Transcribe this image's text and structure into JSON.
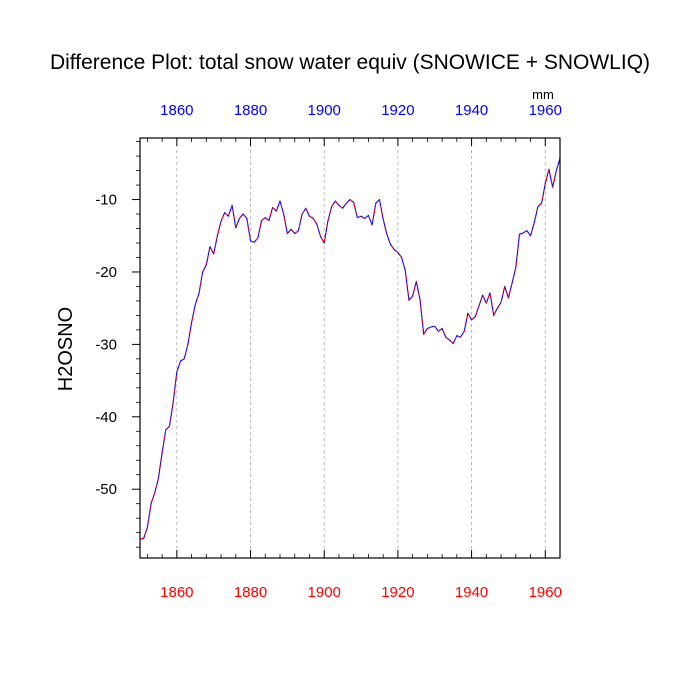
{
  "chart_data": {
    "type": "line",
    "title": "Difference Plot: total snow water equiv (SNOWICE + SNOWLIQ)",
    "ylabel": "H2OSNO",
    "units": "mm",
    "xlim": [
      1850,
      1964
    ],
    "ylim": [
      -59.5,
      -1.5
    ],
    "x_ticks": [
      1860,
      1880,
      1900,
      1920,
      1940,
      1960
    ],
    "y_ticks": [
      -10,
      -20,
      -30,
      -40,
      -50
    ],
    "x_tick_labels": [
      "1860",
      "1880",
      "1900",
      "1920",
      "1940",
      "1960"
    ],
    "y_tick_labels": [
      "-10",
      "-20",
      "-30",
      "-40",
      "-50"
    ],
    "grid": "vertical dashed at major x ticks",
    "series": [
      {
        "name": "difference",
        "color": "#0000ff",
        "dash_overlay_color": "#ff0000",
        "x_start": 1850,
        "x_step": 1,
        "values": [
          -56.9,
          -56.8,
          -55.3,
          -52.0,
          -50.5,
          -48.5,
          -45.0,
          -41.8,
          -41.3,
          -38.0,
          -33.8,
          -32.3,
          -32.0,
          -30.0,
          -27.0,
          -24.5,
          -23.0,
          -20.0,
          -19.0,
          -16.5,
          -17.5,
          -15.0,
          -13.0,
          -11.8,
          -12.3,
          -10.8,
          -13.9,
          -12.6,
          -12.0,
          -12.6,
          -15.7,
          -15.9,
          -15.3,
          -12.9,
          -12.5,
          -12.9,
          -11.1,
          -11.6,
          -10.2,
          -12.0,
          -14.7,
          -14.1,
          -14.7,
          -14.3,
          -12.0,
          -11.2,
          -12.3,
          -12.6,
          -13.4,
          -15.1,
          -16.0,
          -13.0,
          -11.0,
          -10.2,
          -10.8,
          -11.2,
          -10.5,
          -10.0,
          -10.4,
          -12.5,
          -12.3,
          -12.6,
          -12.2,
          -13.5,
          -10.5,
          -10.0,
          -12.7,
          -14.8,
          -16.2,
          -16.9,
          -17.3,
          -18.0,
          -19.8,
          -23.9,
          -23.3,
          -21.3,
          -23.8,
          -28.6,
          -27.8,
          -27.6,
          -27.5,
          -28.2,
          -27.8,
          -29.0,
          -29.4,
          -29.9,
          -28.8,
          -29.0,
          -28.2,
          -25.7,
          -26.6,
          -26.2,
          -24.7,
          -23.2,
          -24.3,
          -22.9,
          -26.0,
          -25.0,
          -24.2,
          -22.0,
          -23.6,
          -21.5,
          -19.4,
          -14.8,
          -14.6,
          -14.3,
          -15.0,
          -13.2,
          -11.0,
          -10.5,
          -7.8,
          -5.8,
          -8.3,
          -6.0,
          -4.3
        ]
      }
    ]
  }
}
